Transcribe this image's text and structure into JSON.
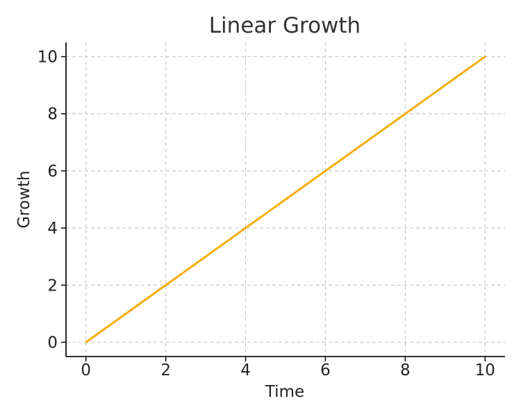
{
  "chart_data": {
    "type": "line",
    "title": "Linear Growth",
    "xlabel": "Time",
    "ylabel": "Growth",
    "x": [
      0,
      1,
      2,
      3,
      4,
      5,
      6,
      7,
      8,
      9,
      10
    ],
    "series": [
      {
        "values": [
          0,
          1,
          2,
          3,
          4,
          5,
          6,
          7,
          8,
          9,
          10
        ],
        "color": "#f5ad0c"
      }
    ],
    "xlim": [
      -0.5,
      10.5
    ],
    "ylim": [
      -0.5,
      10.5
    ],
    "xticks": [
      0,
      2,
      4,
      6,
      8,
      10
    ],
    "yticks": [
      0,
      2,
      4,
      6,
      8,
      10
    ],
    "xtick_labels": [
      "0",
      "2",
      "4",
      "6",
      "8",
      "10"
    ],
    "ytick_labels": [
      "0",
      "2",
      "4",
      "6",
      "8",
      "10"
    ],
    "grid": true,
    "legend": false
  }
}
